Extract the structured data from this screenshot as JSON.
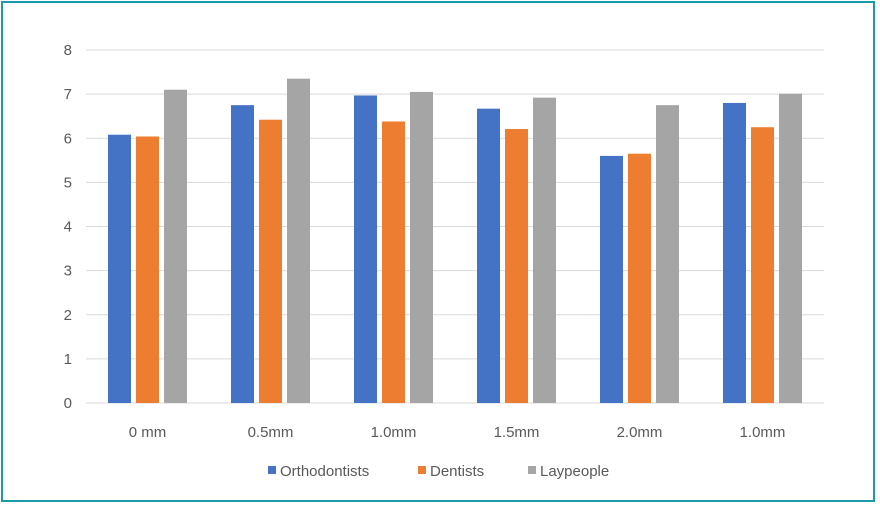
{
  "chart_data": {
    "type": "bar",
    "categories": [
      "0 mm",
      "0.5mm",
      "1.0mm",
      "1.5mm",
      "2.0mm",
      "1.0mm"
    ],
    "series": [
      {
        "name": "Orthodontists",
        "color": "#4472c4",
        "values": [
          6.08,
          6.75,
          6.97,
          6.67,
          5.6,
          6.8
        ]
      },
      {
        "name": "Dentists",
        "color": "#ed7d31",
        "values": [
          6.04,
          6.42,
          6.38,
          6.21,
          5.65,
          6.25
        ]
      },
      {
        "name": "Laypeople",
        "color": "#a5a5a5",
        "values": [
          7.1,
          7.35,
          7.05,
          6.92,
          6.75,
          7.01
        ]
      }
    ],
    "ylim": [
      0,
      8
    ],
    "yticks": [
      0,
      1,
      2,
      3,
      4,
      5,
      6,
      7,
      8
    ],
    "grid": true,
    "legend": "bottom-center",
    "title": "",
    "xlabel": "",
    "ylabel": ""
  }
}
